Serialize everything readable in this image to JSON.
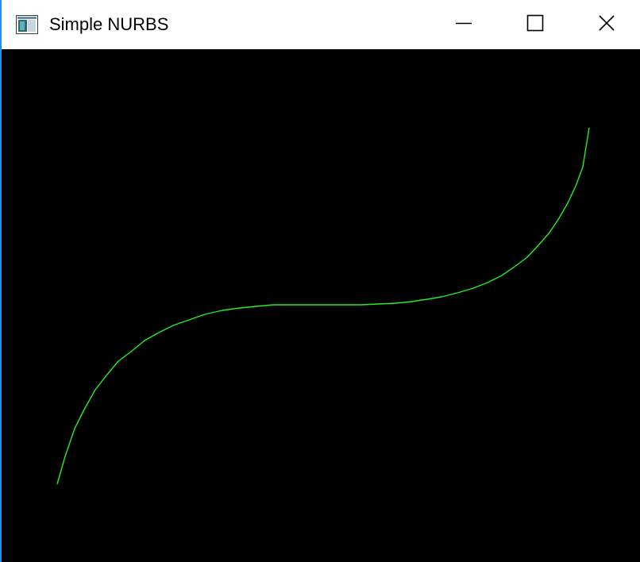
{
  "window": {
    "title": "Simple NURBS",
    "icon": "app-window-icon",
    "controls": {
      "minimize_icon": "minimize-icon",
      "maximize_icon": "maximize-icon",
      "close_icon": "close-icon"
    }
  },
  "canvas": {
    "background_color": "#000000",
    "curve_color": "#22ee22",
    "curve_type": "nurbs"
  },
  "colors": {
    "window_border": "#1e90e8",
    "titlebar_background": "#ffffff",
    "title_text": "#000000"
  }
}
